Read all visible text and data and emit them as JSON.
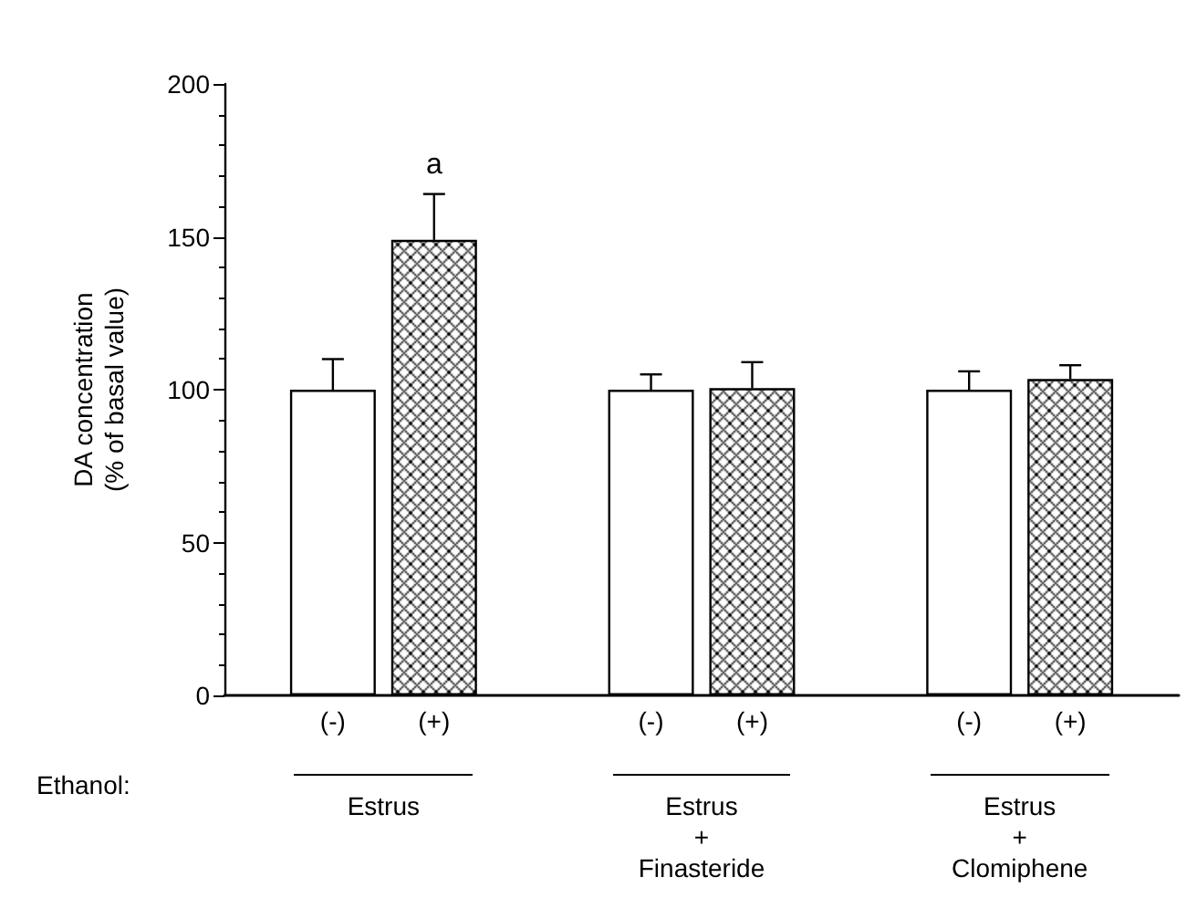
{
  "chart_data": {
    "type": "bar",
    "ylabel": "DA concentration\n(% of basal value)",
    "xlabel": "Ethanol:",
    "categories": [
      "Estrus",
      "Estrus\n+\nFinasteride",
      "Estrus\n+\nClomiphene"
    ],
    "series": [
      {
        "name": "(-)",
        "color": "#ffffff",
        "values": [
          100,
          100,
          100
        ],
        "errors": [
          [
            100,
            110
          ],
          [
            100,
            105
          ],
          [
            100,
            106
          ]
        ]
      },
      {
        "name": "(+)",
        "color": "#000000",
        "values": [
          149,
          100.5,
          103.5
        ],
        "errors": [
          [
            149,
            164
          ],
          [
            100.5,
            109
          ],
          [
            103.5,
            108
          ]
        ],
        "value_labels": [
          "a",
          null,
          null
        ]
      }
    ],
    "ylim": [
      0,
      200
    ],
    "yticks": [
      0,
      50,
      100,
      150,
      200
    ],
    "grid": false,
    "legend": false
  }
}
